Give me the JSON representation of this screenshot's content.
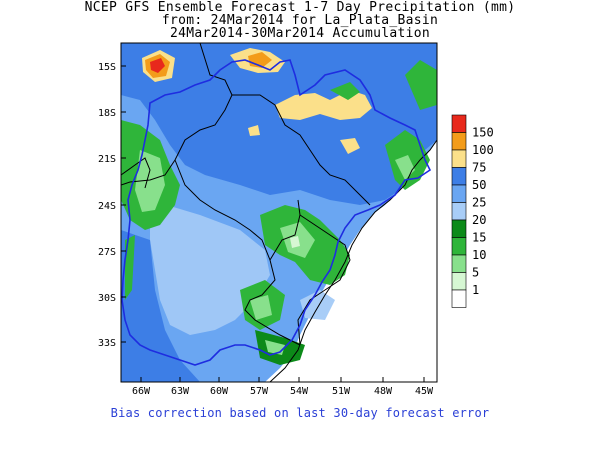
{
  "title": {
    "line1": "NCEP GFS Ensemble Forecast 1-7 Day Precipitation (mm)",
    "line2": "from: 24Mar2014   for La_Plata_Basin",
    "line3": "24Mar2014-30Mar2014 Accumulation"
  },
  "axes": {
    "lat_labels": [
      "15S",
      "18S",
      "21S",
      "24S",
      "27S",
      "30S",
      "33S"
    ],
    "lon_labels": [
      "66W",
      "63W",
      "60W",
      "57W",
      "54W",
      "51W",
      "48W",
      "45W"
    ]
  },
  "legend": {
    "levels": [
      {
        "label": "150",
        "color": "#e8291c"
      },
      {
        "label": "100",
        "color": "#f39c1a"
      },
      {
        "label": "75",
        "color": "#fbe08a"
      },
      {
        "label": "50",
        "color": "#3d7ee6"
      },
      {
        "label": "25",
        "color": "#6aa6f2"
      },
      {
        "label": "20",
        "color": "#a8cdf7"
      },
      {
        "label": "15",
        "color": "#0c8a19"
      },
      {
        "label": "10",
        "color": "#2fb53a"
      },
      {
        "label": "5",
        "color": "#88e08c"
      },
      {
        "label": "1",
        "color": "#d6f7d3"
      },
      {
        "label": "",
        "color": "#ffffff"
      }
    ]
  },
  "footnote": "Bias correction based on last 30-day forecast error"
}
